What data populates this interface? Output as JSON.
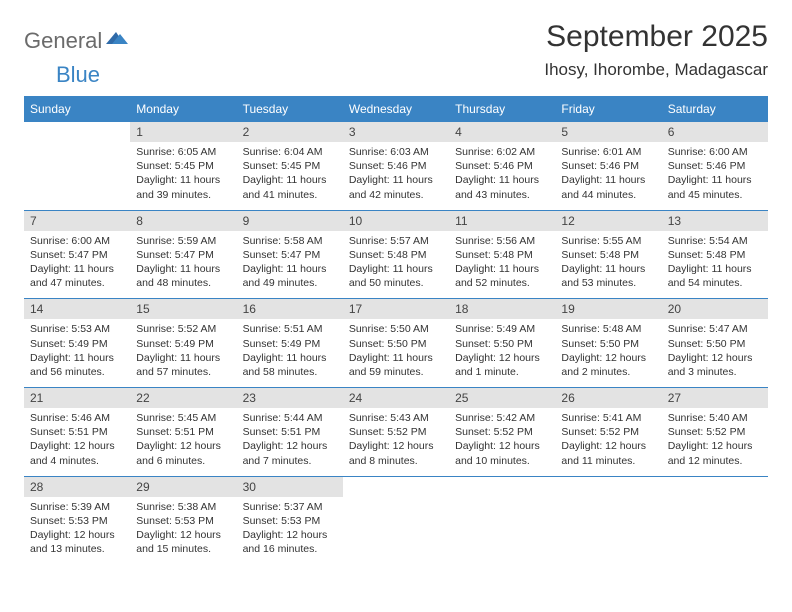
{
  "logo": {
    "part1": "General",
    "part2": "Blue"
  },
  "title": "September 2025",
  "location": "Ihosy, Ihorombe, Madagascar",
  "colors": {
    "header_bg": "#3a84c4",
    "header_fg": "#ffffff",
    "daynum_bg": "#e3e3e3",
    "text": "#333333",
    "logo_gray": "#6b6b6b",
    "logo_blue": "#3a84c4",
    "page_bg": "#ffffff"
  },
  "weekdays": [
    "Sunday",
    "Monday",
    "Tuesday",
    "Wednesday",
    "Thursday",
    "Friday",
    "Saturday"
  ],
  "weeks": [
    {
      "days": [
        {
          "num": "",
          "sunrise": "",
          "sunset": "",
          "daylight": ""
        },
        {
          "num": "1",
          "sunrise": "Sunrise: 6:05 AM",
          "sunset": "Sunset: 5:45 PM",
          "daylight": "Daylight: 11 hours and 39 minutes."
        },
        {
          "num": "2",
          "sunrise": "Sunrise: 6:04 AM",
          "sunset": "Sunset: 5:45 PM",
          "daylight": "Daylight: 11 hours and 41 minutes."
        },
        {
          "num": "3",
          "sunrise": "Sunrise: 6:03 AM",
          "sunset": "Sunset: 5:46 PM",
          "daylight": "Daylight: 11 hours and 42 minutes."
        },
        {
          "num": "4",
          "sunrise": "Sunrise: 6:02 AM",
          "sunset": "Sunset: 5:46 PM",
          "daylight": "Daylight: 11 hours and 43 minutes."
        },
        {
          "num": "5",
          "sunrise": "Sunrise: 6:01 AM",
          "sunset": "Sunset: 5:46 PM",
          "daylight": "Daylight: 11 hours and 44 minutes."
        },
        {
          "num": "6",
          "sunrise": "Sunrise: 6:00 AM",
          "sunset": "Sunset: 5:46 PM",
          "daylight": "Daylight: 11 hours and 45 minutes."
        }
      ]
    },
    {
      "days": [
        {
          "num": "7",
          "sunrise": "Sunrise: 6:00 AM",
          "sunset": "Sunset: 5:47 PM",
          "daylight": "Daylight: 11 hours and 47 minutes."
        },
        {
          "num": "8",
          "sunrise": "Sunrise: 5:59 AM",
          "sunset": "Sunset: 5:47 PM",
          "daylight": "Daylight: 11 hours and 48 minutes."
        },
        {
          "num": "9",
          "sunrise": "Sunrise: 5:58 AM",
          "sunset": "Sunset: 5:47 PM",
          "daylight": "Daylight: 11 hours and 49 minutes."
        },
        {
          "num": "10",
          "sunrise": "Sunrise: 5:57 AM",
          "sunset": "Sunset: 5:48 PM",
          "daylight": "Daylight: 11 hours and 50 minutes."
        },
        {
          "num": "11",
          "sunrise": "Sunrise: 5:56 AM",
          "sunset": "Sunset: 5:48 PM",
          "daylight": "Daylight: 11 hours and 52 minutes."
        },
        {
          "num": "12",
          "sunrise": "Sunrise: 5:55 AM",
          "sunset": "Sunset: 5:48 PM",
          "daylight": "Daylight: 11 hours and 53 minutes."
        },
        {
          "num": "13",
          "sunrise": "Sunrise: 5:54 AM",
          "sunset": "Sunset: 5:48 PM",
          "daylight": "Daylight: 11 hours and 54 minutes."
        }
      ]
    },
    {
      "days": [
        {
          "num": "14",
          "sunrise": "Sunrise: 5:53 AM",
          "sunset": "Sunset: 5:49 PM",
          "daylight": "Daylight: 11 hours and 56 minutes."
        },
        {
          "num": "15",
          "sunrise": "Sunrise: 5:52 AM",
          "sunset": "Sunset: 5:49 PM",
          "daylight": "Daylight: 11 hours and 57 minutes."
        },
        {
          "num": "16",
          "sunrise": "Sunrise: 5:51 AM",
          "sunset": "Sunset: 5:49 PM",
          "daylight": "Daylight: 11 hours and 58 minutes."
        },
        {
          "num": "17",
          "sunrise": "Sunrise: 5:50 AM",
          "sunset": "Sunset: 5:50 PM",
          "daylight": "Daylight: 11 hours and 59 minutes."
        },
        {
          "num": "18",
          "sunrise": "Sunrise: 5:49 AM",
          "sunset": "Sunset: 5:50 PM",
          "daylight": "Daylight: 12 hours and 1 minute."
        },
        {
          "num": "19",
          "sunrise": "Sunrise: 5:48 AM",
          "sunset": "Sunset: 5:50 PM",
          "daylight": "Daylight: 12 hours and 2 minutes."
        },
        {
          "num": "20",
          "sunrise": "Sunrise: 5:47 AM",
          "sunset": "Sunset: 5:50 PM",
          "daylight": "Daylight: 12 hours and 3 minutes."
        }
      ]
    },
    {
      "days": [
        {
          "num": "21",
          "sunrise": "Sunrise: 5:46 AM",
          "sunset": "Sunset: 5:51 PM",
          "daylight": "Daylight: 12 hours and 4 minutes."
        },
        {
          "num": "22",
          "sunrise": "Sunrise: 5:45 AM",
          "sunset": "Sunset: 5:51 PM",
          "daylight": "Daylight: 12 hours and 6 minutes."
        },
        {
          "num": "23",
          "sunrise": "Sunrise: 5:44 AM",
          "sunset": "Sunset: 5:51 PM",
          "daylight": "Daylight: 12 hours and 7 minutes."
        },
        {
          "num": "24",
          "sunrise": "Sunrise: 5:43 AM",
          "sunset": "Sunset: 5:52 PM",
          "daylight": "Daylight: 12 hours and 8 minutes."
        },
        {
          "num": "25",
          "sunrise": "Sunrise: 5:42 AM",
          "sunset": "Sunset: 5:52 PM",
          "daylight": "Daylight: 12 hours and 10 minutes."
        },
        {
          "num": "26",
          "sunrise": "Sunrise: 5:41 AM",
          "sunset": "Sunset: 5:52 PM",
          "daylight": "Daylight: 12 hours and 11 minutes."
        },
        {
          "num": "27",
          "sunrise": "Sunrise: 5:40 AM",
          "sunset": "Sunset: 5:52 PM",
          "daylight": "Daylight: 12 hours and 12 minutes."
        }
      ]
    },
    {
      "days": [
        {
          "num": "28",
          "sunrise": "Sunrise: 5:39 AM",
          "sunset": "Sunset: 5:53 PM",
          "daylight": "Daylight: 12 hours and 13 minutes."
        },
        {
          "num": "29",
          "sunrise": "Sunrise: 5:38 AM",
          "sunset": "Sunset: 5:53 PM",
          "daylight": "Daylight: 12 hours and 15 minutes."
        },
        {
          "num": "30",
          "sunrise": "Sunrise: 5:37 AM",
          "sunset": "Sunset: 5:53 PM",
          "daylight": "Daylight: 12 hours and 16 minutes."
        },
        {
          "num": "",
          "sunrise": "",
          "sunset": "",
          "daylight": ""
        },
        {
          "num": "",
          "sunrise": "",
          "sunset": "",
          "daylight": ""
        },
        {
          "num": "",
          "sunrise": "",
          "sunset": "",
          "daylight": ""
        },
        {
          "num": "",
          "sunrise": "",
          "sunset": "",
          "daylight": ""
        }
      ]
    }
  ]
}
